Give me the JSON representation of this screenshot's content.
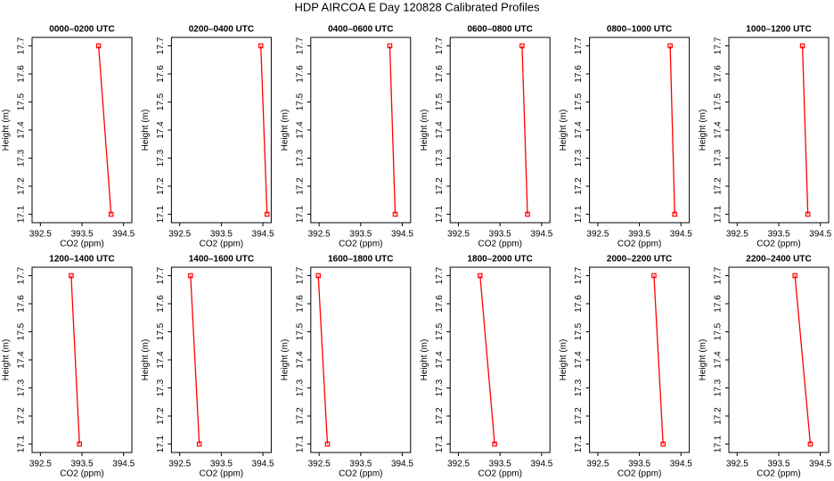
{
  "title": "HDP AIRCOA E  Day 120828  Calibrated Profiles",
  "chart_data": [
    {
      "type": "line",
      "title": "0000–0200 UTC",
      "x": [
        393.9,
        394.2
      ],
      "values": [
        17.7,
        17.1
      ],
      "color": "#ff0000",
      "xlabel": "CO2 (ppm)",
      "ylabel": "Height (m)",
      "xlim": [
        392.3,
        394.7
      ],
      "xticks": [
        392.5,
        393.5,
        394.5
      ],
      "ylim": [
        17.07,
        17.73
      ],
      "yticks": [
        17.1,
        17.2,
        17.3,
        17.4,
        17.5,
        17.6,
        17.7
      ]
    },
    {
      "type": "line",
      "title": "0200–0400 UTC",
      "x": [
        394.45,
        394.6
      ],
      "values": [
        17.7,
        17.1
      ],
      "color": "#ff0000",
      "xlabel": "CO2 (ppm)",
      "ylabel": "Height (m)",
      "xlim": [
        392.3,
        394.7
      ],
      "xticks": [
        392.5,
        393.5,
        394.5
      ],
      "ylim": [
        17.07,
        17.73
      ],
      "yticks": [
        17.1,
        17.2,
        17.3,
        17.4,
        17.5,
        17.6,
        17.7
      ]
    },
    {
      "type": "line",
      "title": "0400–0600 UTC",
      "x": [
        394.2,
        394.33
      ],
      "values": [
        17.7,
        17.1
      ],
      "color": "#ff0000",
      "xlabel": "CO2 (ppm)",
      "ylabel": "Height (m)",
      "xlim": [
        392.3,
        394.7
      ],
      "xticks": [
        392.5,
        393.5,
        394.5
      ],
      "ylim": [
        17.07,
        17.73
      ],
      "yticks": [
        17.1,
        17.2,
        17.3,
        17.4,
        17.5,
        17.6,
        17.7
      ]
    },
    {
      "type": "line",
      "title": "0600–0800 UTC",
      "x": [
        394.03,
        394.16
      ],
      "values": [
        17.7,
        17.1
      ],
      "color": "#ff0000",
      "xlabel": "CO2 (ppm)",
      "ylabel": "Height (m)",
      "xlim": [
        392.3,
        394.7
      ],
      "xticks": [
        392.5,
        393.5,
        394.5
      ],
      "ylim": [
        17.07,
        17.73
      ],
      "yticks": [
        17.1,
        17.2,
        17.3,
        17.4,
        17.5,
        17.6,
        17.7
      ]
    },
    {
      "type": "line",
      "title": "0800–1000 UTC",
      "x": [
        394.24,
        394.35
      ],
      "values": [
        17.7,
        17.1
      ],
      "color": "#ff0000",
      "xlabel": "CO2 (ppm)",
      "ylabel": "Height (m)",
      "xlim": [
        392.3,
        394.7
      ],
      "xticks": [
        392.5,
        393.5,
        394.5
      ],
      "ylim": [
        17.07,
        17.73
      ],
      "yticks": [
        17.1,
        17.2,
        17.3,
        17.4,
        17.5,
        17.6,
        17.7
      ]
    },
    {
      "type": "line",
      "title": "1000–1200 UTC",
      "x": [
        394.07,
        394.2
      ],
      "values": [
        17.7,
        17.1
      ],
      "color": "#ff0000",
      "xlabel": "CO2 (ppm)",
      "ylabel": "Height (m)",
      "xlim": [
        392.3,
        394.7
      ],
      "xticks": [
        392.5,
        393.5,
        394.5
      ],
      "ylim": [
        17.07,
        17.73
      ],
      "yticks": [
        17.1,
        17.2,
        17.3,
        17.4,
        17.5,
        17.6,
        17.7
      ]
    },
    {
      "type": "line",
      "title": "1200–1400 UTC",
      "x": [
        393.24,
        393.44
      ],
      "values": [
        17.7,
        17.1
      ],
      "color": "#ff0000",
      "xlabel": "CO2 (ppm)",
      "ylabel": "Height (m)",
      "xlim": [
        392.3,
        394.7
      ],
      "xticks": [
        392.5,
        393.5,
        394.5
      ],
      "ylim": [
        17.07,
        17.73
      ],
      "yticks": [
        17.1,
        17.2,
        17.3,
        17.4,
        17.5,
        17.6,
        17.7
      ]
    },
    {
      "type": "line",
      "title": "1400–1600 UTC",
      "x": [
        392.76,
        392.97
      ],
      "values": [
        17.7,
        17.1
      ],
      "color": "#ff0000",
      "xlabel": "CO2 (ppm)",
      "ylabel": "Height (m)",
      "xlim": [
        392.3,
        394.7
      ],
      "xticks": [
        392.5,
        393.5,
        394.5
      ],
      "ylim": [
        17.07,
        17.73
      ],
      "yticks": [
        17.1,
        17.2,
        17.3,
        17.4,
        17.5,
        17.6,
        17.7
      ]
    },
    {
      "type": "line",
      "title": "1600–1800 UTC",
      "x": [
        392.48,
        392.7
      ],
      "values": [
        17.7,
        17.1
      ],
      "color": "#ff0000",
      "xlabel": "CO2 (ppm)",
      "ylabel": "Height (m)",
      "xlim": [
        392.3,
        394.7
      ],
      "xticks": [
        392.5,
        393.5,
        394.5
      ],
      "ylim": [
        17.07,
        17.73
      ],
      "yticks": [
        17.1,
        17.2,
        17.3,
        17.4,
        17.5,
        17.6,
        17.7
      ]
    },
    {
      "type": "line",
      "title": "1800–2000 UTC",
      "x": [
        393.02,
        393.37
      ],
      "values": [
        17.7,
        17.1
      ],
      "color": "#ff0000",
      "xlabel": "CO2 (ppm)",
      "ylabel": "Height (m)",
      "xlim": [
        392.3,
        394.7
      ],
      "xticks": [
        392.5,
        393.5,
        394.5
      ],
      "ylim": [
        17.07,
        17.73
      ],
      "yticks": [
        17.1,
        17.2,
        17.3,
        17.4,
        17.5,
        17.6,
        17.7
      ]
    },
    {
      "type": "line",
      "title": "2000–2200 UTC",
      "x": [
        393.85,
        394.07
      ],
      "values": [
        17.7,
        17.1
      ],
      "color": "#ff0000",
      "xlabel": "CO2 (ppm)",
      "ylabel": "Height (m)",
      "xlim": [
        392.3,
        394.7
      ],
      "xticks": [
        392.5,
        393.5,
        394.5
      ],
      "ylim": [
        17.07,
        17.73
      ],
      "yticks": [
        17.1,
        17.2,
        17.3,
        17.4,
        17.5,
        17.6,
        17.7
      ]
    },
    {
      "type": "line",
      "title": "2200–2400 UTC",
      "x": [
        393.89,
        394.26
      ],
      "values": [
        17.7,
        17.1
      ],
      "color": "#ff0000",
      "xlabel": "CO2 (ppm)",
      "ylabel": "Height (m)",
      "xlim": [
        392.3,
        394.7
      ],
      "xticks": [
        392.5,
        393.5,
        394.5
      ],
      "ylim": [
        17.07,
        17.73
      ],
      "yticks": [
        17.1,
        17.2,
        17.3,
        17.4,
        17.5,
        17.6,
        17.7
      ]
    }
  ]
}
